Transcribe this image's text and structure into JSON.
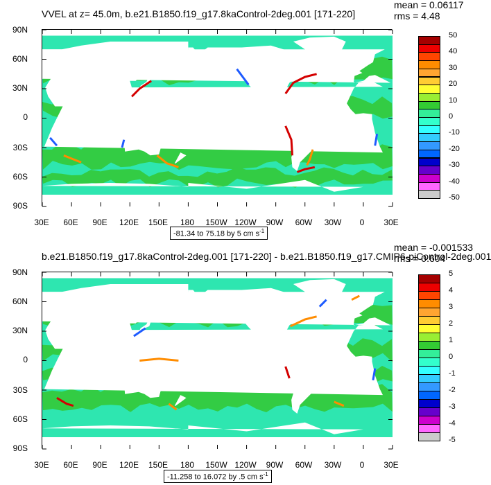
{
  "panels": [
    {
      "title": "VVEL at z=  45.0m, b.e21.B1850.f19_g17.8kaControl-2deg.001 [171-220]",
      "mean_text": "mean = 0.06117",
      "rms_text": "rms = 4.48",
      "range_text": "-81.34 to 75.18 by 5 cm s",
      "range_exp": "-1",
      "colorbar_labels": [
        "50",
        "40",
        "30",
        "20",
        "10",
        "0",
        "-10",
        "-20",
        "-30",
        "-40",
        "-50"
      ],
      "lat_labels": [
        "90N",
        "60N",
        "30N",
        "0",
        "30S",
        "60S",
        "90S"
      ],
      "lon_labels": [
        "30E",
        "60E",
        "90E",
        "120E",
        "150E",
        "180",
        "150W",
        "120W",
        "90W",
        "60W",
        "30W",
        "0",
        "30E"
      ]
    },
    {
      "title": "b.e21.B1850.f19_g17.8kaControl-2deg.001 [171-220] - b.e21.B1850.f19_g17.CMIP6-piControl-2deg.001",
      "mean_text": "mean = -0.001533",
      "rms_text": "rms = 0.604",
      "range_text": "-11.258 to 16.072 by .5 cm s",
      "range_exp": "-1",
      "colorbar_labels": [
        "5",
        "4",
        "3",
        "2",
        "1",
        "0",
        "-1",
        "-2",
        "-3",
        "-4",
        "-5"
      ],
      "lat_labels": [
        "90N",
        "60N",
        "30N",
        "0",
        "30S",
        "60S",
        "90S"
      ],
      "lon_labels": [
        "30E",
        "60E",
        "90E",
        "120E",
        "150E",
        "180",
        "150W",
        "120W",
        "90W",
        "60W",
        "30W",
        "0",
        "30E"
      ]
    }
  ],
  "colorbar_colors": [
    "#ffffff",
    "#a50000",
    "#ee0000",
    "#ff4500",
    "#ff8c00",
    "#ffa531",
    "#ffcc33",
    "#ffff33",
    "#99ee33",
    "#33cc33",
    "#33ee99",
    "#33ffcc",
    "#33ffff",
    "#33ccff",
    "#3399ff",
    "#0066ff",
    "#0000cc",
    "#6600cc",
    "#cc00cc",
    "#ff66ff",
    "#cccccc",
    "#777777"
  ],
  "field_colors": {
    "land": "#ffffff",
    "ocean_a": "#2ee6b0",
    "ocean_b": "#33cc44",
    "pos": "#ff8c00",
    "neg": "#1e5bff",
    "hot": "#d40000"
  }
}
